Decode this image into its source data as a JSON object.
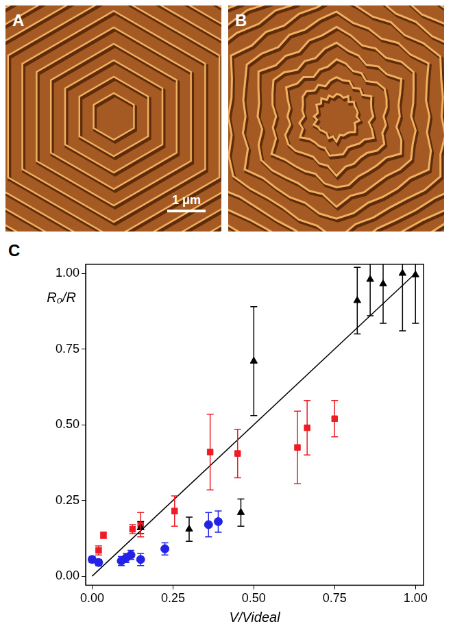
{
  "images": [
    {
      "label": "A",
      "scale_bar": "1 μm"
    },
    {
      "label": "B"
    }
  ],
  "chart_data": {
    "type": "scatter",
    "label": "C",
    "x_label": "V/Videal",
    "y_label": "R₀/R",
    "xlim": [
      -0.02,
      1.025
    ],
    "ylim": [
      -0.03,
      1.03
    ],
    "xticks": [
      {
        "value": 0,
        "label": "0.00"
      },
      {
        "value": 0.25,
        "label": "0.25"
      },
      {
        "value": 0.5,
        "label": "0.50"
      },
      {
        "value": 0.75,
        "label": "0.75"
      },
      {
        "value": 1,
        "label": "1.00"
      }
    ],
    "yticks": [
      {
        "value": 0,
        "label": "0.00"
      },
      {
        "value": 0.25,
        "label": "0.25"
      },
      {
        "value": 0.5,
        "label": "0.50"
      },
      {
        "value": 0.75,
        "label": "0.75"
      },
      {
        "value": 1,
        "label": "1.00"
      }
    ],
    "grid": false,
    "series": [
      {
        "type": "line",
        "color": "#000000",
        "marker": "none",
        "line_style": "solid",
        "x": [
          0,
          1
        ],
        "values": [
          0,
          1
        ]
      },
      {
        "color": "#000000",
        "marker": "triangle",
        "x": [
          0.15,
          0.3,
          0.46,
          0.5,
          0.82,
          0.86,
          0.9,
          0.96,
          1.0
        ],
        "values": [
          0.16,
          0.155,
          0.21,
          0.71,
          0.91,
          0.98,
          0.965,
          1.0,
          0.995
        ],
        "errors": [
          0.02,
          0.04,
          0.045,
          0.18,
          0.11,
          0.12,
          0.13,
          0.19,
          0.16
        ]
      },
      {
        "color": "#ee1c25",
        "marker": "square",
        "x": [
          0.02,
          0.035,
          0.125,
          0.15,
          0.255,
          0.365,
          0.45,
          0.635,
          0.665,
          0.75
        ],
        "values": [
          0.085,
          0.135,
          0.155,
          0.17,
          0.215,
          0.41,
          0.405,
          0.425,
          0.49,
          0.52
        ],
        "errors": [
          0.015,
          0.01,
          0.015,
          0.04,
          0.05,
          0.125,
          0.08,
          0.12,
          0.09,
          0.06
        ]
      },
      {
        "color": "#2323e6",
        "marker": "circle",
        "x": [
          0.0,
          0.02,
          0.09,
          0.105,
          0.12,
          0.15,
          0.225,
          0.36,
          0.39
        ],
        "values": [
          0.055,
          0.045,
          0.05,
          0.06,
          0.07,
          0.055,
          0.09,
          0.17,
          0.18
        ],
        "errors": [
          0.01,
          0.01,
          0.015,
          0.015,
          0.015,
          0.02,
          0.02,
          0.04,
          0.035
        ]
      }
    ]
  }
}
